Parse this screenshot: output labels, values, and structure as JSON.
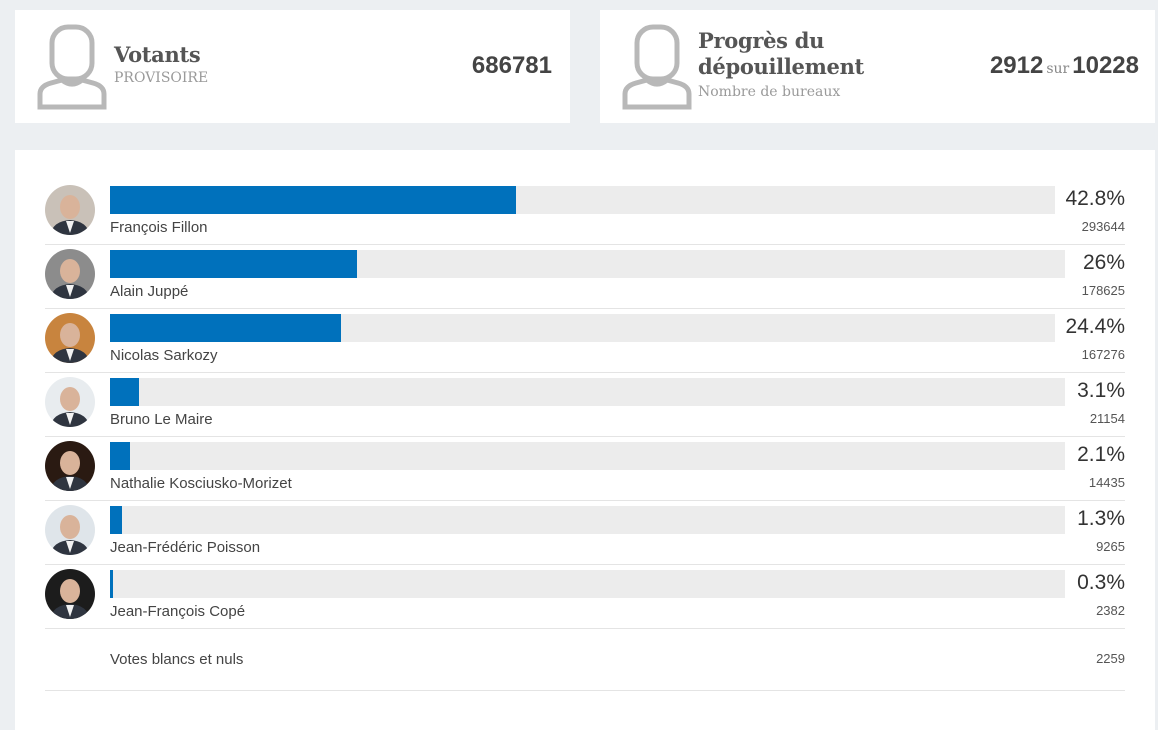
{
  "votants": {
    "title": "Votants",
    "subtitle": "PROVISOIRE",
    "value": "686781",
    "icon": "person-icon"
  },
  "progres": {
    "title": "Progrès du dépouillement",
    "subtitle": "Nombre de bureaux",
    "counted": "2912",
    "sur": "sur",
    "total": "10228",
    "icon": "person-icon"
  },
  "colors": {
    "bar": "#0071bc",
    "track": "#ececec"
  },
  "candidates": [
    {
      "name": "François Fillon",
      "pct": 42.8,
      "pct_label": "42.8%",
      "votes": "293644",
      "avatar_bg": "#c9c1b8"
    },
    {
      "name": "Alain Juppé",
      "pct": 26,
      "pct_label": "26%",
      "votes": "178625",
      "avatar_bg": "#8c8c8c"
    },
    {
      "name": "Nicolas Sarkozy",
      "pct": 24.4,
      "pct_label": "24.4%",
      "votes": "167276",
      "avatar_bg": "#c8843e"
    },
    {
      "name": "Bruno Le Maire",
      "pct": 3.1,
      "pct_label": "3.1%",
      "votes": "21154",
      "avatar_bg": "#e8ecef"
    },
    {
      "name": "Nathalie Kosciusko-Morizet",
      "pct": 2.1,
      "pct_label": "2.1%",
      "votes": "14435",
      "avatar_bg": "#2a1a12"
    },
    {
      "name": "Jean-Frédéric Poisson",
      "pct": 1.3,
      "pct_label": "1.3%",
      "votes": "9265",
      "avatar_bg": "#dfe5ea"
    },
    {
      "name": "Jean-François Copé",
      "pct": 0.3,
      "pct_label": "0.3%",
      "votes": "2382",
      "avatar_bg": "#1c1c1c"
    }
  ],
  "blancs": {
    "label": "Votes blancs et nuls",
    "votes": "2259"
  }
}
